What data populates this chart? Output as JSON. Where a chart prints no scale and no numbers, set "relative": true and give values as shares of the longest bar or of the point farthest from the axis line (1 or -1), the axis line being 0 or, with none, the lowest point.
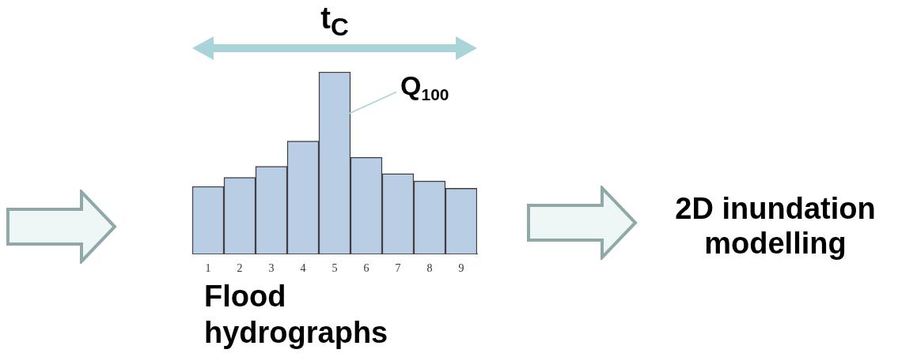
{
  "chart_data": {
    "type": "bar",
    "relative": true,
    "categories": [
      "1",
      "2",
      "3",
      "4",
      "5",
      "6",
      "7",
      "8",
      "9"
    ],
    "values": [
      0.37,
      0.42,
      0.48,
      0.62,
      1,
      0.53,
      0.44,
      0.4,
      0.36
    ],
    "color": "#b9cde5",
    "xlabel": "Flood hydrographs",
    "grid": false,
    "legend": false,
    "annotations": [
      "t$_{C}$",
      "Q$_{100}$",
      "2D inundation modelling"
    ]
  }
}
